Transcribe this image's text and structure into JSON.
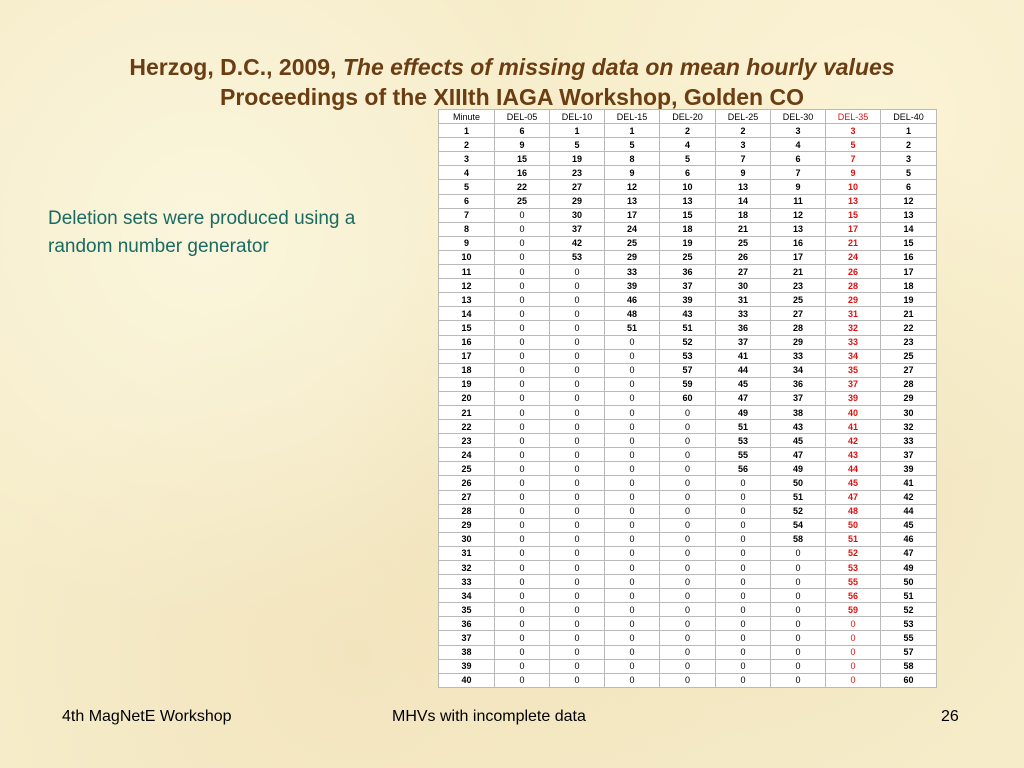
{
  "title": {
    "line1_prefix": "Herzog, D.C., 2009, ",
    "line1_italic": "The effects of missing data on mean hourly values",
    "line2": "Proceedings of the XIIIth IAGA Workshop, Golden CO"
  },
  "bullet_text": "Deletion sets were produced using a random number generator",
  "table": {
    "headers": [
      "Minute",
      "DEL-05",
      "DEL-10",
      "DEL-15",
      "DEL-20",
      "DEL-25",
      "DEL-30",
      "DEL-35",
      "DEL-40"
    ],
    "highlight_column": 7,
    "highlight_color": "#e01010",
    "rows": [
      [
        1,
        6,
        1,
        1,
        2,
        2,
        3,
        3,
        1
      ],
      [
        2,
        9,
        5,
        5,
        4,
        3,
        4,
        5,
        2
      ],
      [
        3,
        15,
        19,
        8,
        5,
        7,
        6,
        7,
        3
      ],
      [
        4,
        16,
        23,
        9,
        6,
        9,
        7,
        9,
        5
      ],
      [
        5,
        22,
        27,
        12,
        10,
        13,
        9,
        10,
        6
      ],
      [
        6,
        25,
        29,
        13,
        13,
        14,
        11,
        13,
        12
      ],
      [
        7,
        0,
        30,
        17,
        15,
        18,
        12,
        15,
        13
      ],
      [
        8,
        0,
        37,
        24,
        18,
        21,
        13,
        17,
        14
      ],
      [
        9,
        0,
        42,
        25,
        19,
        25,
        16,
        21,
        15
      ],
      [
        10,
        0,
        53,
        29,
        25,
        26,
        17,
        24,
        16
      ],
      [
        11,
        0,
        0,
        33,
        36,
        27,
        21,
        26,
        17
      ],
      [
        12,
        0,
        0,
        39,
        37,
        30,
        23,
        28,
        18
      ],
      [
        13,
        0,
        0,
        46,
        39,
        31,
        25,
        29,
        19
      ],
      [
        14,
        0,
        0,
        48,
        43,
        33,
        27,
        31,
        21
      ],
      [
        15,
        0,
        0,
        51,
        51,
        36,
        28,
        32,
        22
      ],
      [
        16,
        0,
        0,
        0,
        52,
        37,
        29,
        33,
        23
      ],
      [
        17,
        0,
        0,
        0,
        53,
        41,
        33,
        34,
        25
      ],
      [
        18,
        0,
        0,
        0,
        57,
        44,
        34,
        35,
        27
      ],
      [
        19,
        0,
        0,
        0,
        59,
        45,
        36,
        37,
        28
      ],
      [
        20,
        0,
        0,
        0,
        60,
        47,
        37,
        39,
        29
      ],
      [
        21,
        0,
        0,
        0,
        0,
        49,
        38,
        40,
        30
      ],
      [
        22,
        0,
        0,
        0,
        0,
        51,
        43,
        41,
        32
      ],
      [
        23,
        0,
        0,
        0,
        0,
        53,
        45,
        42,
        33
      ],
      [
        24,
        0,
        0,
        0,
        0,
        55,
        47,
        43,
        37
      ],
      [
        25,
        0,
        0,
        0,
        0,
        56,
        49,
        44,
        39
      ],
      [
        26,
        0,
        0,
        0,
        0,
        0,
        50,
        45,
        41
      ],
      [
        27,
        0,
        0,
        0,
        0,
        0,
        51,
        47,
        42
      ],
      [
        28,
        0,
        0,
        0,
        0,
        0,
        52,
        48,
        44
      ],
      [
        29,
        0,
        0,
        0,
        0,
        0,
        54,
        50,
        45
      ],
      [
        30,
        0,
        0,
        0,
        0,
        0,
        58,
        51,
        46
      ],
      [
        31,
        0,
        0,
        0,
        0,
        0,
        0,
        52,
        47
      ],
      [
        32,
        0,
        0,
        0,
        0,
        0,
        0,
        53,
        49
      ],
      [
        33,
        0,
        0,
        0,
        0,
        0,
        0,
        55,
        50
      ],
      [
        34,
        0,
        0,
        0,
        0,
        0,
        0,
        56,
        51
      ],
      [
        35,
        0,
        0,
        0,
        0,
        0,
        0,
        59,
        52
      ],
      [
        36,
        0,
        0,
        0,
        0,
        0,
        0,
        0,
        53
      ],
      [
        37,
        0,
        0,
        0,
        0,
        0,
        0,
        0,
        55
      ],
      [
        38,
        0,
        0,
        0,
        0,
        0,
        0,
        0,
        57
      ],
      [
        39,
        0,
        0,
        0,
        0,
        0,
        0,
        0,
        58
      ],
      [
        40,
        0,
        0,
        0,
        0,
        0,
        0,
        0,
        60
      ]
    ]
  },
  "footer": {
    "left": "4th MagNetE Workshop",
    "center": "MHVs with incomplete data",
    "page_number": "26"
  }
}
